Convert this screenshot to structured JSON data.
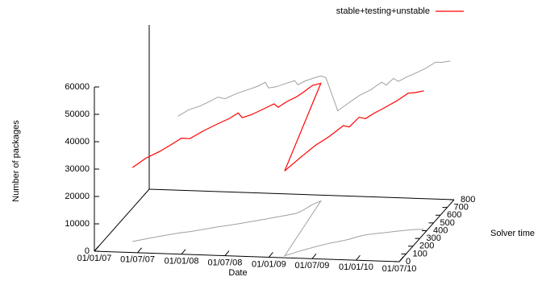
{
  "chart_data": {
    "type": "line3d",
    "xlabel": "Date",
    "ylabel": "Solver time",
    "zlabel": "Number of packages",
    "legend": "top-right",
    "xlim": [
      "2007-01-01",
      "2010-07-01"
    ],
    "xticks": [
      {
        "value": "2007-01-01",
        "label": "01/01/07"
      },
      {
        "value": "2007-07-01",
        "label": "01/07/07"
      },
      {
        "value": "2008-01-01",
        "label": "01/01/08"
      },
      {
        "value": "2008-07-01",
        "label": "01/07/08"
      },
      {
        "value": "2009-01-01",
        "label": "01/01/09"
      },
      {
        "value": "2009-07-01",
        "label": "01/07/09"
      },
      {
        "value": "2010-01-01",
        "label": "01/01/10"
      },
      {
        "value": "2010-07-01",
        "label": "01/07/10"
      }
    ],
    "ylim": [
      0,
      800
    ],
    "yticks": [
      0,
      100,
      200,
      300,
      400,
      500,
      600,
      700,
      800
    ],
    "zlim": [
      0,
      60000
    ],
    "zticks": [
      0,
      10000,
      20000,
      30000,
      40000,
      50000,
      60000
    ],
    "series": [
      {
        "name": "stable+testing+unstable",
        "color": "#ff0000",
        "x": [
          "2007-05-01",
          "2007-06-15",
          "2007-08-01",
          "2007-09-15",
          "2007-10-15",
          "2007-11-15",
          "2008-01-01",
          "2008-02-15",
          "2008-04-01",
          "2008-05-01",
          "2008-05-15",
          "2008-06-15",
          "2008-08-01",
          "2008-09-01",
          "2008-09-15",
          "2008-10-15",
          "2008-11-15",
          "2008-12-01",
          "2008-12-20",
          "2009-01-10",
          "2009-03-01",
          "2009-04-15",
          "2009-06-01",
          "2009-07-15",
          "2009-09-01",
          "2009-09-20",
          "2009-10-20",
          "2009-11-10",
          "2009-12-10",
          "2010-01-15",
          "2010-03-01",
          "2010-04-15",
          "2010-05-10",
          "2010-06-15"
        ],
        "y": [
          138,
          175,
          215,
          250,
          270,
          285,
          320,
          355,
          385,
          405,
          415,
          440,
          475,
          500,
          510,
          535,
          560,
          600,
          680,
          726,
          24,
          90,
          150,
          200,
          240,
          260,
          300,
          320,
          340,
          355,
          380,
          400,
          410,
          416
        ],
        "z": [
          27000,
          29500,
          31000,
          33000,
          34500,
          34000,
          36000,
          37500,
          39000,
          40500,
          38500,
          39000,
          40500,
          41500,
          40000,
          41500,
          42500,
          43000,
          43500,
          43000,
          31000,
          34000,
          37000,
          39000,
          42000,
          41000,
          43500,
          42500,
          44000,
          45500,
          47500,
          50000,
          50000,
          50600
        ]
      }
    ]
  }
}
